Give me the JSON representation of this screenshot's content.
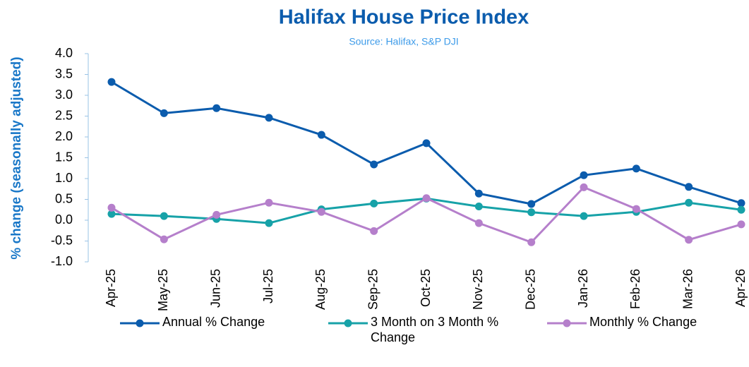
{
  "chart_data": {
    "type": "line",
    "title": "Halifax House Price Index",
    "subtitle": "Source: Halifax, S&P DJI",
    "y_label": "% change (seasonally adjusted)",
    "categories": [
      "Apr-25",
      "May-25",
      "Jun-25",
      "Jul-25",
      "Aug-25",
      "Sep-25",
      "Oct-25",
      "Nov-25",
      "Dec-25",
      "Jan-26",
      "Feb-26",
      "Mar-26",
      "Apr-26"
    ],
    "series": [
      {
        "name": "Annual % Change",
        "color": "#0b5cad",
        "values": [
          3.32,
          2.57,
          2.69,
          2.46,
          2.05,
          1.34,
          1.85,
          0.64,
          0.39,
          1.08,
          1.24,
          0.8,
          0.41
        ]
      },
      {
        "name": "3 Month on 3 Month % Change",
        "color": "#17a2a8",
        "values": [
          0.15,
          0.1,
          0.03,
          -0.07,
          0.26,
          0.4,
          0.52,
          0.33,
          0.19,
          0.1,
          0.2,
          0.42,
          0.25
        ]
      },
      {
        "name": "Monthly % Change",
        "color": "#b57fcb",
        "values": [
          0.3,
          -0.46,
          0.13,
          0.42,
          0.2,
          -0.26,
          0.53,
          -0.07,
          -0.53,
          0.79,
          0.27,
          -0.47,
          -0.1
        ]
      }
    ],
    "ylim": [
      -1.0,
      4.0
    ],
    "yticks": [
      {
        "value": -1,
        "label": "-1.0"
      },
      {
        "value": -0.5,
        "label": "-0.5"
      },
      {
        "value": 0,
        "label": "0.0"
      },
      {
        "value": 0.5,
        "label": "0.5"
      },
      {
        "value": 1,
        "label": "1.0"
      },
      {
        "value": 1.5,
        "label": "1.5"
      },
      {
        "value": 2,
        "label": "2.0"
      },
      {
        "value": 2.5,
        "label": "2.5"
      },
      {
        "value": 3,
        "label": "3.0"
      },
      {
        "value": 3.5,
        "label": "3.5"
      },
      {
        "value": 4,
        "label": "4.0"
      }
    ],
    "grid": false,
    "legend": "bottom"
  }
}
